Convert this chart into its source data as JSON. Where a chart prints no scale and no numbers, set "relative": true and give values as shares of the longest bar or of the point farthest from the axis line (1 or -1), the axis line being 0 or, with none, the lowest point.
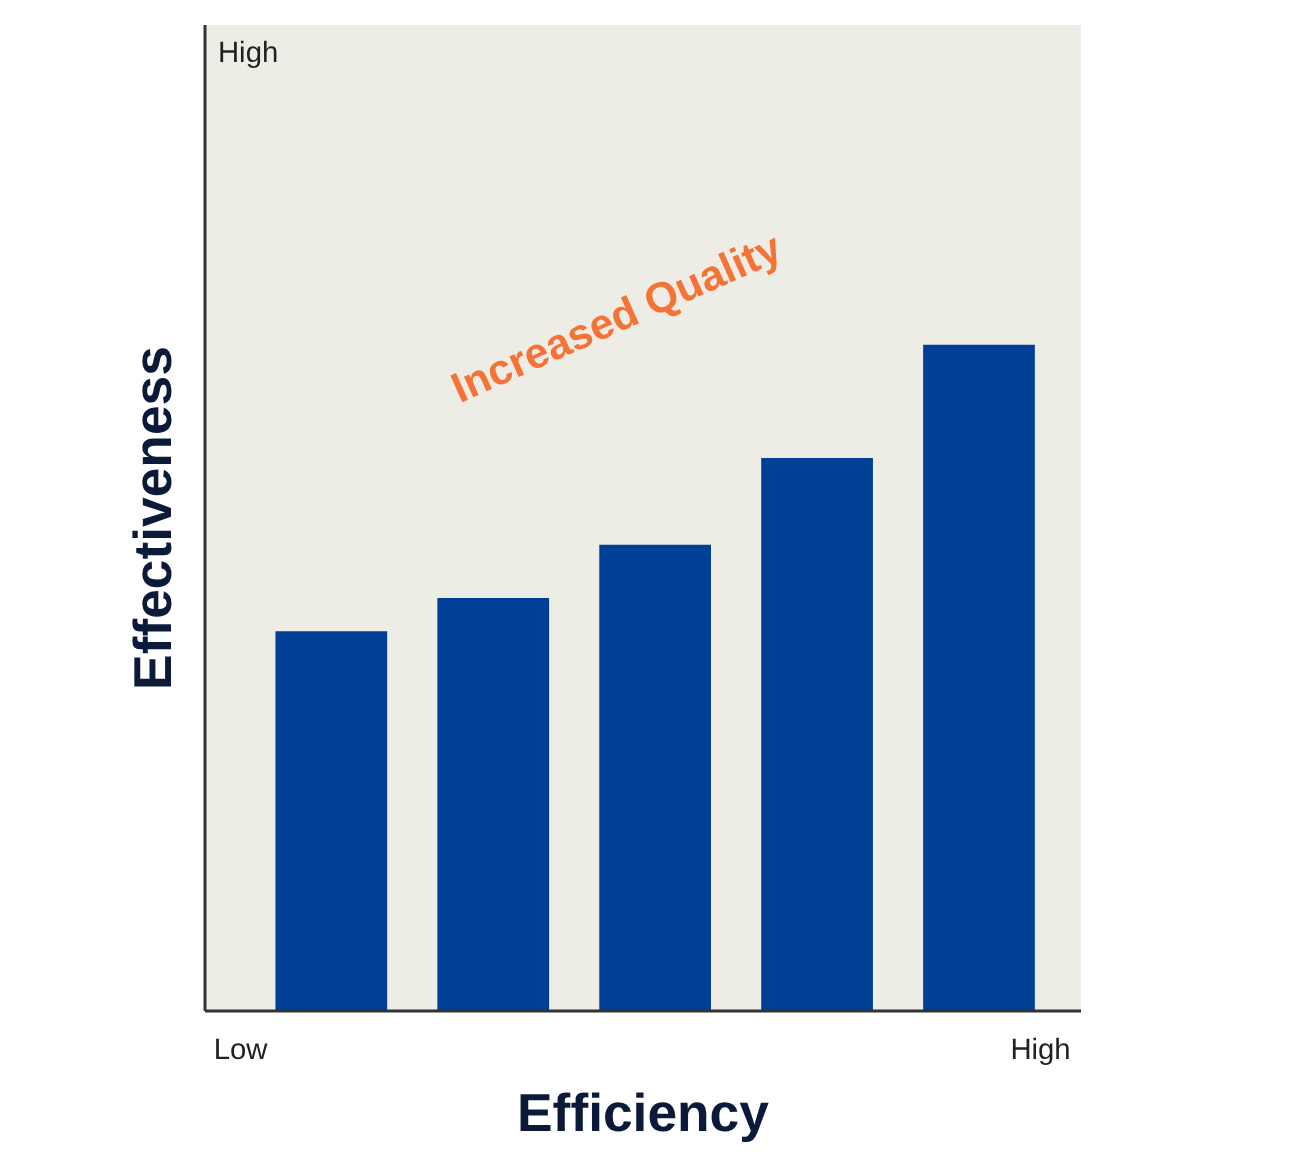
{
  "chart_data": {
    "type": "bar",
    "relative": true,
    "categories": [
      null,
      null,
      null,
      null,
      null
    ],
    "values": [
      0.57,
      0.62,
      0.7,
      0.83,
      1
    ],
    "color": "#003f97",
    "xlabel": "Efficiency",
    "ylabel": "Effectiveness",
    "annotations": [
      "High",
      "Low",
      "High",
      "Increased Quality"
    ],
    "grid": false,
    "legend": false
  }
}
